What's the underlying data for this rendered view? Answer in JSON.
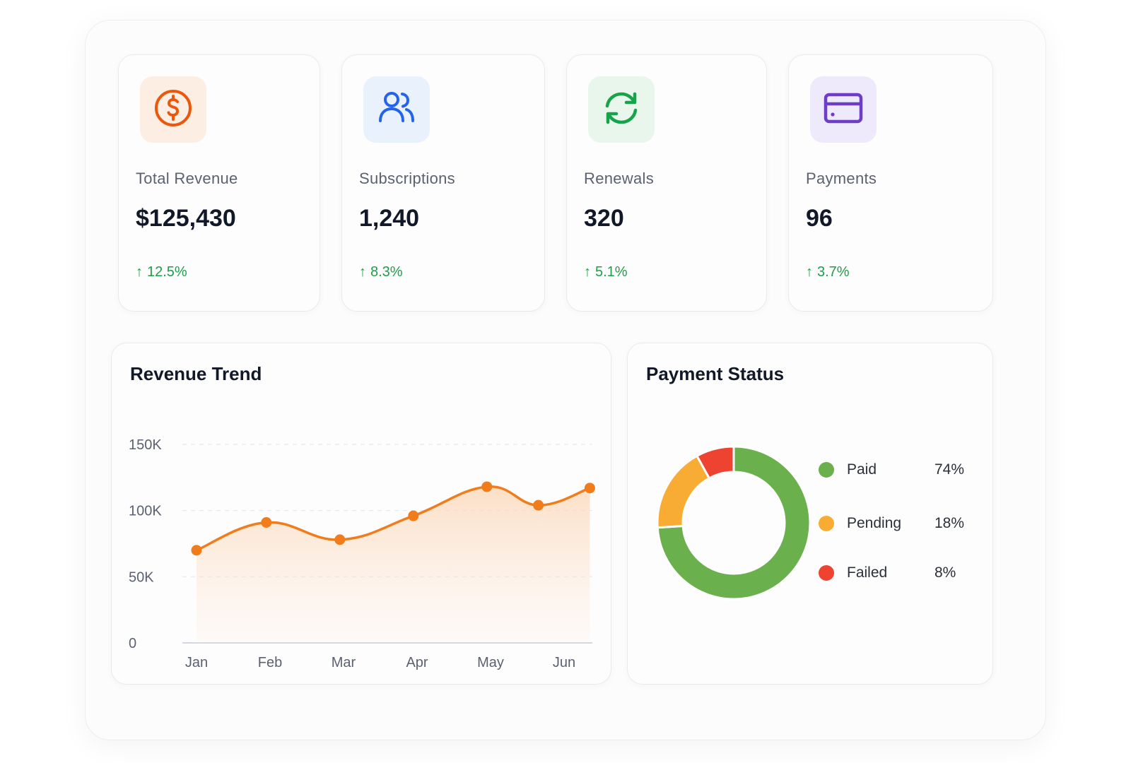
{
  "kpis": [
    {
      "label": "Total Revenue",
      "value": "$125,430",
      "change": "12.5%",
      "icon": "dollar-circle-icon",
      "color": "#ea580c",
      "tint": "#fdeee4"
    },
    {
      "label": "Subscriptions",
      "value": "1,240",
      "change": "8.3%",
      "icon": "users-icon",
      "color": "#2563eb",
      "tint": "#e9f1fd"
    },
    {
      "label": "Renewals",
      "value": "320",
      "change": "5.1%",
      "icon": "refresh-icon",
      "color": "#16a34a",
      "tint": "#e8f6ec"
    },
    {
      "label": "Payments",
      "value": "96",
      "change": "3.7%",
      "icon": "credit-card-icon",
      "color": "#6d3cc9",
      "tint": "#efeafb"
    }
  ],
  "change_arrow": "↑",
  "revenue_trend": {
    "title": "Revenue Trend"
  },
  "payment_status": {
    "title": "Payment Status",
    "items": [
      {
        "name": "Paid",
        "pct": "74%",
        "color": "#6ab04c"
      },
      {
        "name": "Pending",
        "pct": "18%",
        "color": "#f9ac33"
      },
      {
        "name": "Failed",
        "pct": "8%",
        "color": "#ee4330"
      }
    ]
  },
  "chart_data": [
    {
      "type": "area",
      "title": "Revenue Trend",
      "categories": [
        "Jan",
        "Feb",
        "Mar",
        "Apr",
        "May",
        "Jun"
      ],
      "x": [
        0,
        0.95,
        1.95,
        2.95,
        3.95,
        4.65,
        5.35
      ],
      "values": [
        70000,
        91000,
        78000,
        96000,
        118000,
        104000,
        117000
      ],
      "yticks": [
        "0",
        "50K",
        "100K",
        "150K"
      ],
      "ytick_values": [
        0,
        50000,
        100000,
        150000
      ],
      "ylim": [
        0,
        150000
      ],
      "grid": true,
      "line_color": "#f07c1b"
    },
    {
      "type": "pie",
      "title": "Payment Status",
      "labels": [
        "Paid",
        "Pending",
        "Failed"
      ],
      "values": [
        74,
        18,
        8
      ],
      "colors": [
        "#6ab04c",
        "#f9ac33",
        "#ee4330"
      ],
      "donut": true
    }
  ]
}
